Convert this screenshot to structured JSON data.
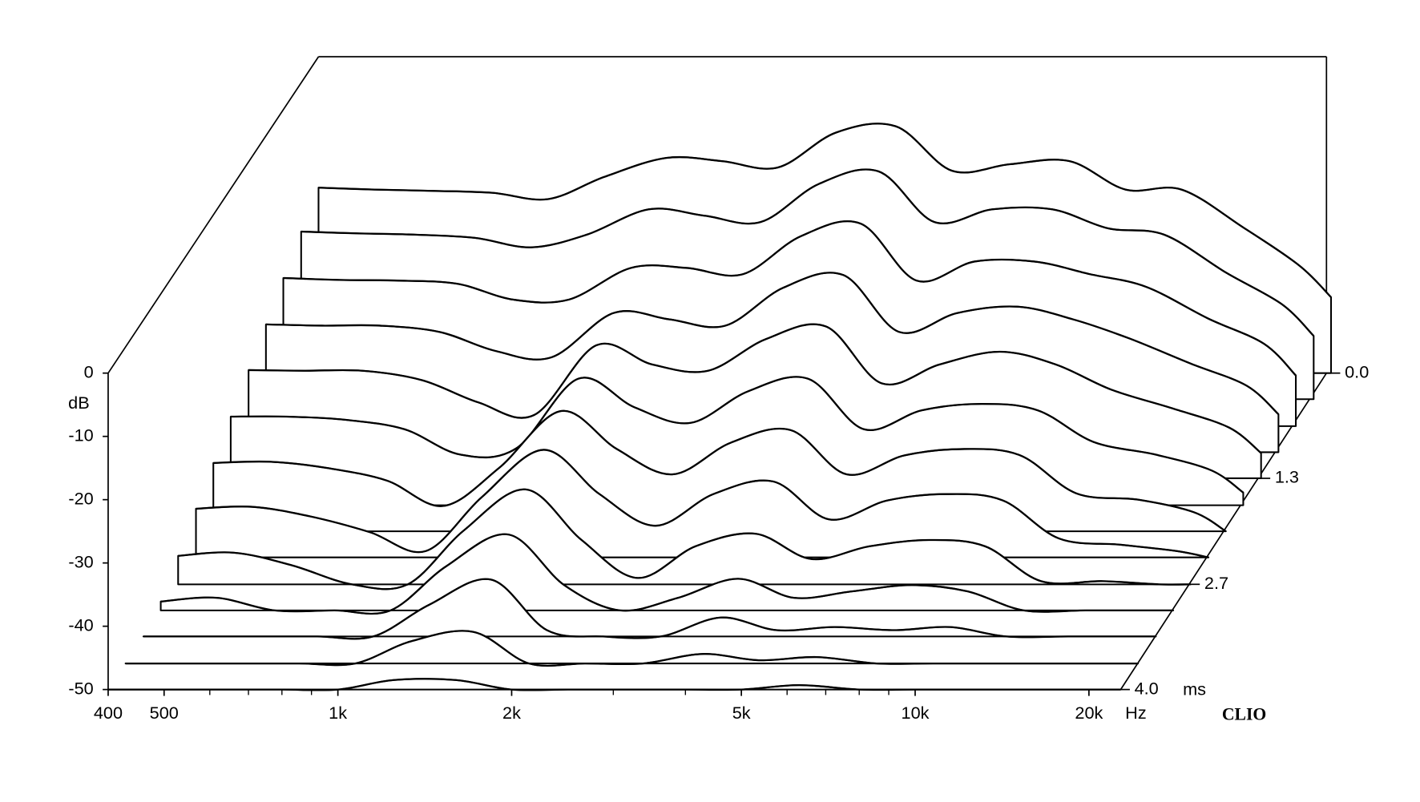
{
  "chart_data": {
    "type": "waterfall",
    "y_label": "dB",
    "x_unit": "Hz",
    "z_unit": "ms",
    "watermark": "CLIO",
    "x": [
      400,
      500,
      630,
      800,
      1000,
      1250,
      1600,
      2000,
      2500,
      3150,
      4000,
      5000,
      6300,
      8000,
      10000,
      12500,
      16000,
      20000,
      22700
    ],
    "z": [
      0,
      0.33,
      0.67,
      1,
      1.33,
      1.67,
      2,
      2.33,
      2.67,
      3,
      3.33,
      3.67,
      4
    ],
    "values": [
      [
        -20.7,
        -21,
        -21.2,
        -21.5,
        -22.5,
        -19,
        -16,
        -16.5,
        -17.5,
        -12,
        -11,
        -18,
        -17,
        -16.5,
        -21,
        -21,
        -27,
        -33,
        -38
      ],
      [
        -23.5,
        -23.8,
        -24,
        -24.5,
        -26,
        -24,
        -20,
        -21,
        -22,
        -16,
        -14,
        -22,
        -20,
        -20,
        -23,
        -24,
        -30,
        -35,
        -40
      ],
      [
        -26.6,
        -26.9,
        -27,
        -27.5,
        -30,
        -30,
        -25,
        -25,
        -26,
        -20,
        -18,
        -27,
        -24,
        -24,
        -26,
        -28,
        -33,
        -37,
        -42
      ],
      [
        -29.8,
        -30,
        -30,
        -31,
        -34,
        -35,
        -28,
        -29,
        -30,
        -24,
        -22,
        -31,
        -28,
        -27,
        -29,
        -32,
        -36,
        -39.5,
        -44
      ],
      [
        -32.9,
        -33,
        -33,
        -34.5,
        -38,
        -40,
        -29,
        -32,
        -33,
        -28,
        -26,
        -35,
        -32,
        -30,
        -32,
        -36,
        -39,
        -42,
        -46
      ],
      [
        -36,
        -36,
        -36.5,
        -38,
        -42,
        -41,
        -30,
        -34.5,
        -37,
        -32,
        -30,
        -38,
        -35,
        -34,
        -35,
        -40,
        -42,
        -44.5,
        -48
      ],
      [
        -39.2,
        -39,
        -40,
        -42,
        -46,
        -40,
        -31,
        -37,
        -41,
        -36,
        -34,
        -41,
        -38,
        -37,
        -38,
        -44,
        -45,
        -47,
        -50
      ],
      [
        -42.3,
        -42,
        -43.5,
        -46,
        -49,
        -40.5,
        -33,
        -40,
        -45,
        -40,
        -38,
        -44,
        -41,
        -40,
        -41,
        -47,
        -48,
        -49,
        -50
      ],
      [
        -45.5,
        -45,
        -47,
        -50,
        -50,
        -41.5,
        -35,
        -43,
        -49,
        -44,
        -42,
        -46,
        -44,
        -43,
        -44,
        -49.5,
        -49.5,
        -50,
        -50
      ],
      [
        -48.6,
        -48,
        -50,
        -50,
        -50,
        -43,
        -38,
        -46,
        -50,
        -48,
        -45,
        -48,
        -47,
        -46,
        -47,
        -50,
        -50,
        -50,
        -50
      ],
      [
        -50,
        -50,
        -50,
        -50,
        -50,
        -45,
        -41,
        -49,
        -50,
        -50,
        -47,
        -49,
        -48.5,
        -49,
        -48.5,
        -50,
        -50,
        -50,
        -50
      ],
      [
        -50,
        -50,
        -50,
        -50,
        -50,
        -46.5,
        -45,
        -50,
        -50,
        -50,
        -48.5,
        -49.5,
        -49,
        -50,
        -50,
        -50,
        -50,
        -50,
        -50
      ],
      [
        -50,
        -50,
        -50,
        -50,
        -50,
        -48.5,
        -48.5,
        -50,
        -50,
        -50,
        -50,
        -50,
        -49.3,
        -50,
        -50,
        -50,
        -50,
        -50,
        -50
      ]
    ],
    "xlim": [
      400,
      22700
    ],
    "log_x": true,
    "xticks": [
      400,
      500,
      {
        "value": 1000,
        "label": "1k"
      },
      {
        "value": 2000,
        "label": "2k"
      },
      {
        "value": 5000,
        "label": "5k"
      },
      {
        "value": 10000,
        "label": "10k"
      },
      {
        "value": 20000,
        "label": "20k"
      }
    ],
    "xminorticks": [
      600,
      700,
      800,
      900,
      3000,
      4000,
      6000,
      7000,
      8000,
      9000
    ],
    "ylim": [
      -50,
      0
    ],
    "yticks": [
      -50,
      -40,
      -30,
      -20,
      -10,
      0
    ],
    "zlim": [
      0,
      4
    ],
    "zticks": [
      {
        "value": 0,
        "label": "0.0"
      },
      {
        "value": 1.33,
        "label": "1.3"
      },
      {
        "value": 2.67,
        "label": "2.7"
      },
      {
        "value": 4,
        "label": "4.0"
      }
    ],
    "color": "#000000"
  }
}
